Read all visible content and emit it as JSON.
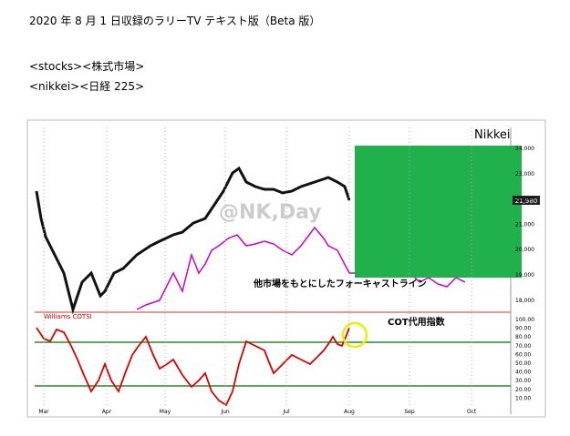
{
  "header": {
    "title": "2020 年 8 月 1 日収録のラリーTV テキスト版（Beta 版）",
    "lines": [
      "<stocks><株式市場>",
      "<nikkei><日経 225>"
    ]
  },
  "figure": {
    "symbol": "Nikkei",
    "watermark": "@NK,Day",
    "forecast_label": "他市場をもとにしたフォーキャストライン",
    "cot_label": "COT代用指数",
    "indicator": "Williams COTSI",
    "months": [
      "Mar",
      "Apr",
      "May",
      "Jun",
      "Jul",
      "Aug",
      "Sep",
      "Oct"
    ],
    "price_ticks": [
      "24,000",
      "23,000",
      "22,000",
      "21,000",
      "20,000",
      "19,000",
      "18,000"
    ],
    "last_price": "21,980",
    "cot_ticks": [
      "100.00",
      "90.00",
      "80.00",
      "70.00",
      "60.00",
      "50.00",
      "40.00",
      "30.00",
      "20.00",
      "10.00"
    ]
  }
}
